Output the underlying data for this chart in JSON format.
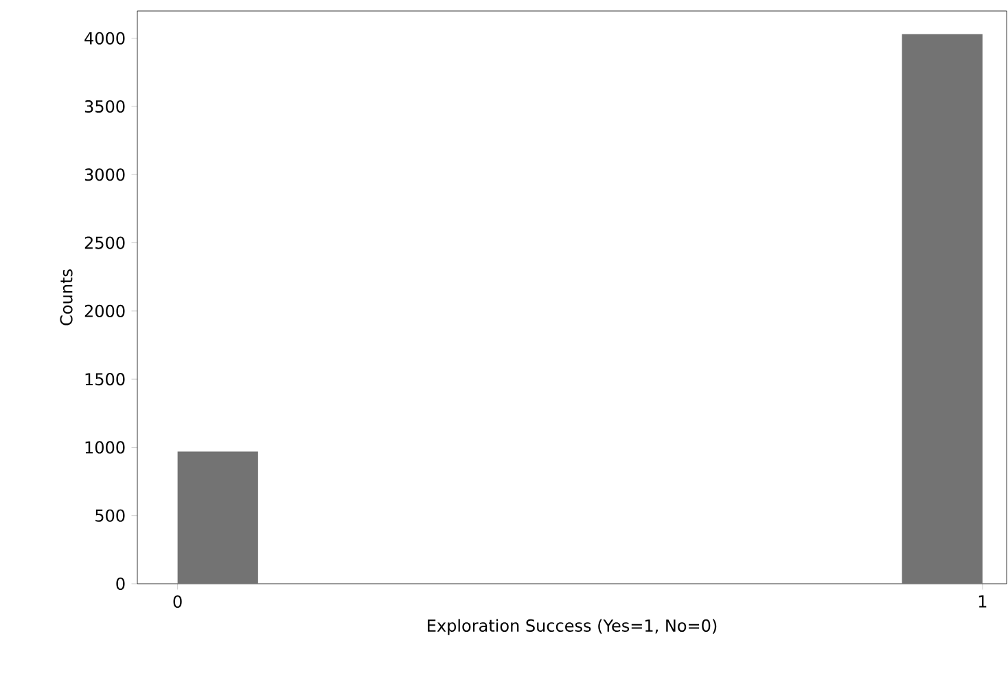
{
  "chart_data": {
    "type": "histogram",
    "xlabel": "Exploration Success (Yes=1, No=0)",
    "ylabel": "Counts",
    "bins": [
      0,
      0.1,
      0.2,
      0.3,
      0.4,
      0.5,
      0.6,
      0.7,
      0.8,
      0.9,
      1.0
    ],
    "values": [
      970,
      0,
      0,
      0,
      0,
      0,
      0,
      0,
      0,
      4030
    ],
    "color": "#737373",
    "xlim": [
      -0.05,
      1.03
    ],
    "ylim": [
      0,
      4200
    ],
    "xticks": [
      0,
      1
    ],
    "yticks": [
      0,
      500,
      1000,
      1500,
      2000,
      2500,
      3000,
      3500,
      4000
    ],
    "grid": false
  }
}
